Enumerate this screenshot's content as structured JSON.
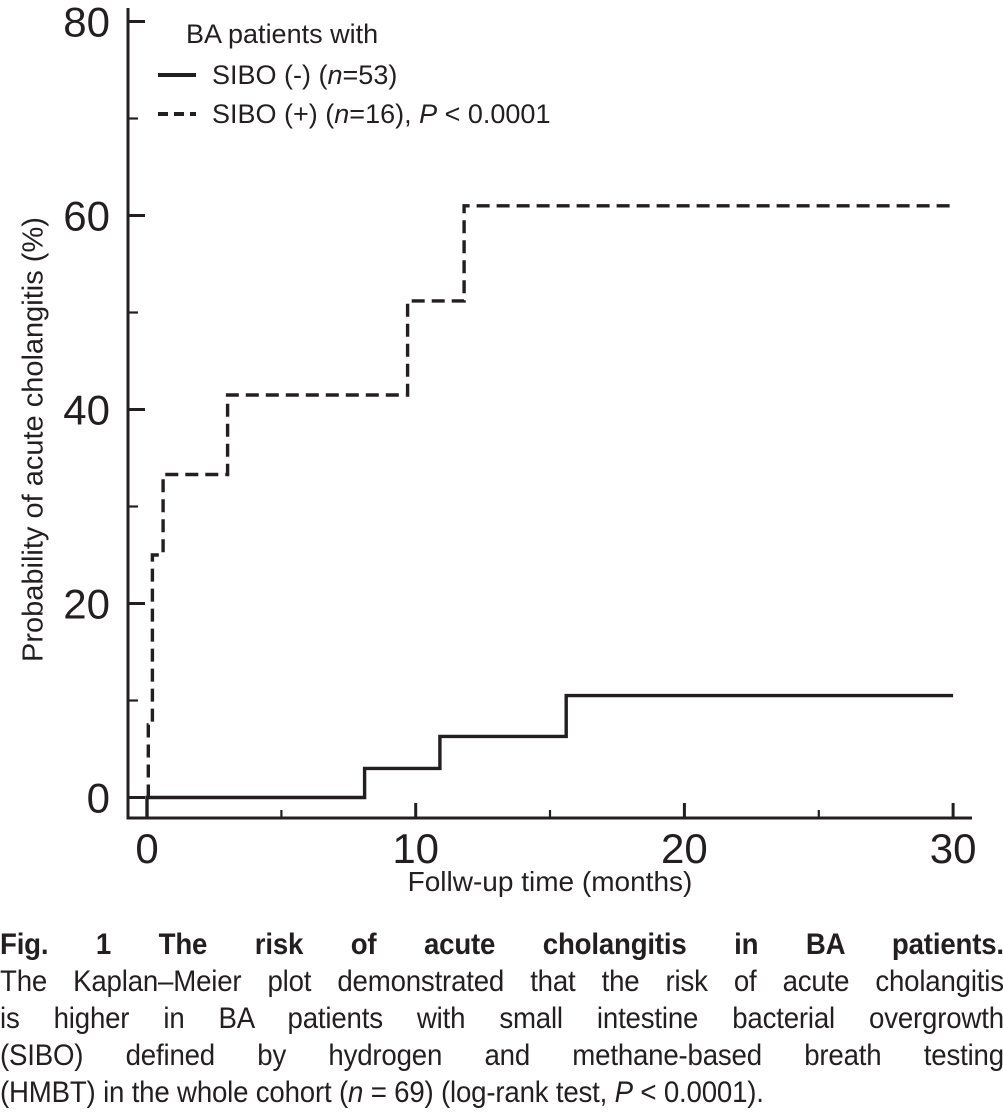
{
  "figure": {
    "background": "#ffffff",
    "ink_color": "#231f20"
  },
  "legend": {
    "title": "BA patients with",
    "items": [
      {
        "line_style": "solid",
        "parts": [
          {
            "t": "SIBO (-) ("
          },
          {
            "t": "n",
            "i": true
          },
          {
            "t": "=53)"
          }
        ]
      },
      {
        "line_style": "dashed",
        "parts": [
          {
            "t": "SIBO (+) ("
          },
          {
            "t": "n",
            "i": true
          },
          {
            "t": "=16), "
          },
          {
            "t": "P",
            "i": true
          },
          {
            "t": " < 0.0001"
          }
        ]
      }
    ]
  },
  "chart_data": {
    "type": "line",
    "subtype": "kaplan-meier-step",
    "title": "",
    "xlabel": "Follw-up time (months)",
    "ylabel": "Probability of acute cholangitis (%)",
    "xlim": [
      0,
      30
    ],
    "ylim": [
      0,
      80
    ],
    "x_ticks_major": [
      0,
      10,
      20,
      30
    ],
    "x_ticks_minor": [
      5,
      15,
      25
    ],
    "y_ticks_major": [
      0,
      20,
      40,
      60,
      80
    ],
    "y_ticks_minor": [
      10,
      30,
      50,
      70
    ],
    "grid": false,
    "legend_position": "top-left-inside",
    "p_value": "P < 0.0001",
    "series": [
      {
        "name": "SIBO (-) (n=53)",
        "line": "solid",
        "start_at_axis": true,
        "steps": [
          [
            0,
            0
          ],
          [
            8.1,
            0
          ],
          [
            8.1,
            3
          ],
          [
            10.9,
            3
          ],
          [
            10.9,
            6.3
          ],
          [
            15.6,
            6.3
          ],
          [
            15.6,
            10.5
          ],
          [
            30,
            10.5
          ]
        ]
      },
      {
        "name": "SIBO (+) (n=16)",
        "line": "dashed",
        "start_at_axis": false,
        "steps": [
          [
            0.05,
            0
          ],
          [
            0.05,
            7.5
          ],
          [
            0.2,
            7.5
          ],
          [
            0.2,
            25
          ],
          [
            0.6,
            25
          ],
          [
            0.6,
            33.3
          ],
          [
            3,
            33.3
          ],
          [
            3,
            41.5
          ],
          [
            9.7,
            41.5
          ],
          [
            9.7,
            51.2
          ],
          [
            11.8,
            51.2
          ],
          [
            11.8,
            61
          ],
          [
            30,
            61
          ]
        ]
      }
    ]
  },
  "caption": {
    "line1": "Fig. 1 The risk of acute cholangitis in BA patients.",
    "line2": "The Kaplan–Meier plot demonstrated that the risk of acute cholangitis",
    "line3": "is higher in BA patients with small intestine bacterial overgrowth",
    "line4": "(SIBO) defined by hydrogen and methane-based breath testing",
    "line5_parts": [
      {
        "t": "(HMBT) in the whole cohort ("
      },
      {
        "t": "n",
        "i": true
      },
      {
        "t": " = 69) (log-rank test, "
      },
      {
        "t": "P",
        "i": true
      },
      {
        "t": " < 0.0001)."
      }
    ]
  }
}
